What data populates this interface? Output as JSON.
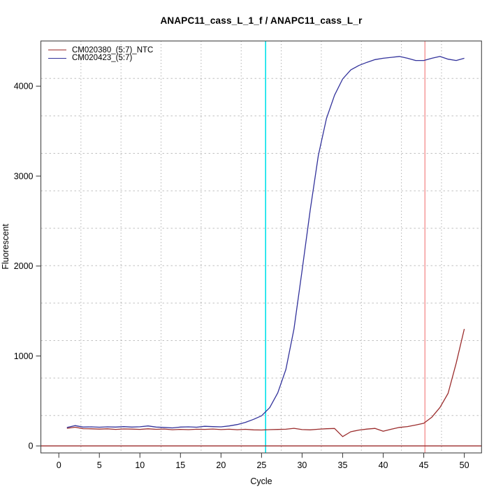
{
  "page": {
    "background": "#ffffff"
  },
  "chart_data": {
    "type": "line",
    "title": "ANAPC11_cass_L_1_f / ANAPC11_cass_L_r",
    "xlabel": "Cycle",
    "ylabel": "Fluorescent",
    "xticks": [
      0,
      5,
      10,
      15,
      20,
      25,
      30,
      35,
      40,
      45,
      50
    ],
    "yticks": [
      0,
      1000,
      2000,
      3000,
      4000
    ],
    "xlim": [
      -2.2,
      52.1
    ],
    "ylim": [
      -75,
      4500
    ],
    "grid": {
      "enabled": true,
      "divisions": 11,
      "h_color": "#c0c0c0",
      "v_color": "#8f8f8f",
      "style": "dotted"
    },
    "legend_position": "top-left",
    "x": [
      1,
      2,
      3,
      4,
      5,
      6,
      7,
      8,
      9,
      10,
      11,
      12,
      13,
      14,
      15,
      16,
      17,
      18,
      19,
      20,
      21,
      22,
      23,
      24,
      25,
      26,
      27,
      28,
      29,
      30,
      31,
      32,
      33,
      34,
      35,
      36,
      37,
      38,
      39,
      40,
      41,
      42,
      43,
      44,
      45,
      46,
      47,
      48,
      49,
      50
    ],
    "series": [
      {
        "name": "CM020380_(5:7)_NTC",
        "color": "#9b2c2c",
        "values": [
          196,
          208,
          192,
          190,
          187,
          190,
          184,
          189,
          187,
          184,
          190,
          185,
          188,
          180,
          184,
          181,
          186,
          184,
          188,
          182,
          186,
          180,
          185,
          179,
          177,
          181,
          183,
          186,
          196,
          182,
          179,
          186,
          191,
          194,
          104,
          158,
          176,
          187,
          195,
          163,
          186,
          206,
          215,
          232,
          252,
          320,
          428,
          585,
          920,
          1300
        ]
      },
      {
        "name": "CM020423_(5:7)",
        "color": "#32329b",
        "values": [
          205,
          226,
          210,
          212,
          208,
          212,
          210,
          214,
          210,
          213,
          222,
          210,
          206,
          200,
          210,
          212,
          208,
          218,
          214,
          212,
          222,
          238,
          262,
          295,
          335,
          425,
          590,
          850,
          1300,
          1950,
          2620,
          3230,
          3640,
          3900,
          4080,
          4180,
          4230,
          4265,
          4295,
          4310,
          4320,
          4330,
          4310,
          4285,
          4285,
          4310,
          4330,
          4300,
          4285,
          4310
        ]
      }
    ],
    "vlines": [
      {
        "x": 25.5,
        "color": "#00e1e8"
      },
      {
        "x": 45.15,
        "color": "#f59e9e"
      }
    ],
    "hlines": [
      {
        "y": 0,
        "color": "#9b2c2c"
      }
    ],
    "axis_color": "#454545",
    "tick_label_color": "#000000"
  }
}
